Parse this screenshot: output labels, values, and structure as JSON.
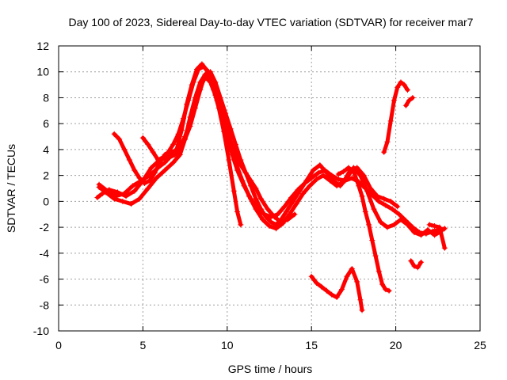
{
  "chart_data": {
    "type": "scatter",
    "title": "Day 100 of 2023, Sidereal Day-to-day VTEC variation (SDTVAR) for receiver mar7",
    "xlabel": "GPS time / hours",
    "ylabel": "SDTVAR / TECUs",
    "xlim": [
      0,
      25
    ],
    "ylim": [
      -10,
      12
    ],
    "xticks": [
      "0",
      "5",
      "10",
      "15",
      "20",
      "25"
    ],
    "yticks": [
      "12",
      "10",
      "8",
      "6",
      "4",
      "2",
      "0",
      "-2",
      "-4",
      "-6",
      "-8",
      "-10"
    ],
    "grid": true,
    "marker": "+",
    "color": "#ff0000",
    "series": [
      {
        "x": [
          2.3,
          2.6,
          3.0,
          3.5,
          4.0,
          4.5,
          5.0,
          5.5,
          6.0,
          6.5,
          7.0,
          7.3,
          7.6,
          7.9,
          8.2,
          8.5,
          8.8,
          9.1,
          9.4,
          9.7,
          10.0,
          10.3,
          10.6,
          11.0,
          11.4,
          11.8,
          12.2,
          12.6,
          13.0,
          13.4,
          13.8,
          14.2,
          14.6,
          15.0,
          15.4,
          15.8,
          16.2,
          16.6,
          17.0,
          17.4,
          17.8,
          18.2,
          18.6,
          19.0,
          19.4,
          19.8,
          20.2,
          20.6,
          21.0,
          21.4,
          21.8,
          22.2,
          22.6,
          22.9
        ],
        "y": [
          0.3,
          0.6,
          0.9,
          0.7,
          0.4,
          0.8,
          1.6,
          2.6,
          3.2,
          3.4,
          4.0,
          5.5,
          7.5,
          9.0,
          10.2,
          10.6,
          10.1,
          9.0,
          7.8,
          6.5,
          5.0,
          3.6,
          2.4,
          1.2,
          0.2,
          -0.5,
          -1.0,
          -1.2,
          -1.0,
          -0.4,
          0.3,
          0.9,
          1.4,
          1.8,
          2.2,
          2.4,
          2.0,
          1.7,
          1.6,
          1.8,
          1.5,
          1.0,
          0.5,
          0.0,
          -0.3,
          -0.6,
          -1.0,
          -1.5,
          -2.0,
          -2.4,
          -2.5,
          -2.3,
          -2.2,
          -2.1
        ]
      },
      {
        "x": [
          2.4,
          2.8,
          3.3,
          3.8,
          4.3,
          4.8,
          5.3,
          5.8,
          6.3,
          6.8,
          7.2,
          7.5,
          7.8,
          8.1,
          8.4,
          8.7,
          9.0,
          9.3,
          9.6,
          9.9,
          10.2,
          10.5,
          10.9,
          11.3,
          11.7,
          12.1,
          12.5,
          12.9,
          13.3,
          13.7,
          14.1,
          14.5,
          14.9,
          15.3,
          15.7,
          16.1,
          16.5,
          16.9,
          17.3,
          17.7,
          18.1,
          18.5,
          18.9,
          19.3,
          19.7,
          20.1
        ],
        "y": [
          1.1,
          0.7,
          0.2,
          0.0,
          -0.2,
          0.2,
          1.0,
          1.8,
          2.4,
          3.0,
          3.6,
          4.8,
          6.5,
          8.0,
          9.2,
          9.8,
          9.4,
          8.6,
          7.6,
          6.2,
          4.6,
          3.0,
          1.6,
          0.4,
          -0.6,
          -1.4,
          -1.9,
          -2.1,
          -1.7,
          -1.0,
          -0.2,
          0.6,
          1.2,
          1.7,
          2.0,
          1.6,
          1.2,
          1.5,
          2.4,
          2.6,
          2.0,
          1.0,
          0.4,
          0.2,
          0.0,
          -0.4
        ]
      },
      {
        "x": [
          3.3,
          3.6,
          3.9,
          4.2,
          4.5,
          4.8,
          5.1,
          5.4,
          5.7,
          6.0,
          6.3,
          6.6,
          6.9,
          7.2,
          7.5,
          7.8,
          8.1,
          8.4,
          8.7,
          9.0,
          9.3,
          9.6,
          9.9,
          10.2,
          10.5,
          10.8,
          11.1,
          11.4,
          11.7,
          12.0,
          12.4,
          12.8,
          13.2,
          13.6,
          14.0
        ],
        "y": [
          5.2,
          4.8,
          4.0,
          3.2,
          2.4,
          1.8,
          1.4,
          1.6,
          2.2,
          3.0,
          3.6,
          3.8,
          3.9,
          4.2,
          5.0,
          6.2,
          7.6,
          8.8,
          9.6,
          9.2,
          8.2,
          7.0,
          5.8,
          4.6,
          3.6,
          2.8,
          2.2,
          1.6,
          1.0,
          0.2,
          -0.6,
          -1.2,
          -1.6,
          -1.4,
          -1.0
        ]
      },
      {
        "x": [
          2.4,
          2.9,
          3.4,
          3.9,
          4.4,
          4.9,
          5.4,
          5.9,
          6.3,
          6.6,
          6.9,
          7.2,
          7.5,
          7.8,
          8.1,
          8.4,
          8.7,
          9.0,
          9.3,
          9.6,
          9.9,
          10.2,
          10.5,
          10.8,
          11.1,
          11.4,
          11.7,
          12.0,
          12.3,
          12.6,
          12.9,
          13.2,
          13.5,
          13.9,
          14.3,
          14.7,
          15.1,
          15.5,
          15.9,
          16.3,
          16.7,
          17.1,
          17.5,
          17.9,
          18.3,
          18.7,
          19.1,
          19.5,
          19.9,
          20.3,
          20.7,
          21.1,
          21.5,
          21.9,
          22.3,
          22.7
        ],
        "y": [
          1.3,
          0.8,
          0.4,
          0.6,
          1.2,
          1.6,
          2.0,
          2.6,
          3.0,
          3.4,
          3.6,
          4.0,
          4.8,
          5.8,
          7.2,
          8.6,
          9.8,
          10.0,
          9.2,
          8.0,
          6.8,
          5.6,
          4.4,
          3.2,
          2.2,
          1.2,
          0.2,
          -0.6,
          -1.2,
          -1.6,
          -1.8,
          -1.4,
          -0.8,
          0.0,
          0.8,
          1.6,
          2.4,
          2.8,
          2.2,
          1.6,
          1.2,
          1.8,
          2.6,
          2.0,
          0.8,
          -0.6,
          -1.6,
          -2.0,
          -1.8,
          -1.4,
          -1.8,
          -2.4,
          -2.6,
          -2.2,
          -2.6,
          -2.3
        ]
      },
      {
        "x": [
          5.0,
          5.3,
          5.6,
          5.9,
          6.2,
          6.5,
          6.8,
          7.1,
          7.4,
          7.7,
          8.0,
          8.3,
          8.6,
          8.9,
          9.2,
          9.5,
          9.8,
          10.1,
          10.4,
          10.6,
          10.8
        ],
        "y": [
          4.9,
          4.4,
          3.8,
          3.2,
          3.4,
          3.8,
          4.4,
          5.2,
          6.4,
          7.8,
          9.2,
          10.2,
          10.4,
          10.0,
          8.6,
          7.2,
          5.4,
          3.2,
          0.8,
          -0.8,
          -1.8
        ]
      },
      {
        "x": [
          16.6,
          16.9,
          17.2,
          17.5,
          17.8,
          18.0,
          18.2,
          18.4,
          18.6,
          18.8,
          19.0,
          19.2,
          19.4,
          19.6
        ],
        "y": [
          2.1,
          2.3,
          2.6,
          2.3,
          1.2,
          0.4,
          -0.8,
          -1.8,
          -3.0,
          -4.2,
          -5.4,
          -6.4,
          -6.8,
          -6.9
        ]
      },
      {
        "x": [
          15.0,
          15.3,
          15.6,
          15.9,
          16.2,
          16.5,
          16.8,
          17.1,
          17.4,
          17.7,
          17.9,
          18.0
        ],
        "y": [
          -5.8,
          -6.3,
          -6.6,
          -6.9,
          -7.2,
          -7.4,
          -6.8,
          -5.8,
          -5.2,
          -6.2,
          -7.6,
          -8.4
        ]
      },
      {
        "x": [
          19.3,
          19.5,
          19.7,
          19.9,
          20.1,
          20.3,
          20.5,
          20.7
        ],
        "y": [
          3.8,
          4.6,
          6.2,
          7.8,
          8.8,
          9.2,
          9.0,
          8.6
        ]
      },
      {
        "x": [
          20.6,
          20.8,
          21.0
        ],
        "y": [
          7.4,
          7.8,
          8.0
        ]
      },
      {
        "x": [
          20.9,
          21.1,
          21.3,
          21.5
        ],
        "y": [
          -4.6,
          -5.0,
          -5.1,
          -4.7
        ]
      },
      {
        "x": [
          22.0,
          22.3,
          22.6,
          22.9
        ],
        "y": [
          -1.8,
          -1.9,
          -2.0,
          -3.6
        ]
      }
    ]
  }
}
